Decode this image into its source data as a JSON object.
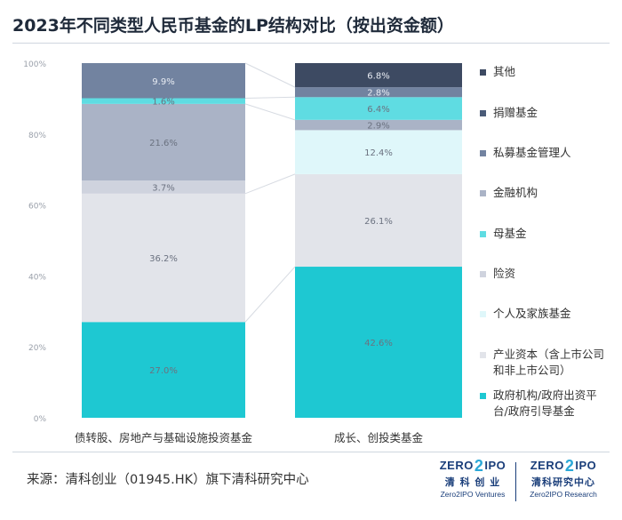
{
  "title": "2023年不同类型人民币基金的LP结构对比（按出资金额）",
  "source": "来源：清科创业（01945.HK）旗下清科研究中心",
  "logos": [
    {
      "mark_left": "ZERO",
      "mark_mid": "2",
      "mark_right": "IPO",
      "cn": "清 科 创 业",
      "en": "Zero2IPO Ventures"
    },
    {
      "mark_left": "ZERO",
      "mark_mid": "2",
      "mark_right": "IPO",
      "cn": "清科研究中心",
      "en": "Zero2IPO Research"
    }
  ],
  "chart_data": {
    "type": "bar",
    "stacked": true,
    "categories": [
      "债转股、房地产与基础设施投资基金",
      "成长、创投类基金"
    ],
    "ylim": [
      0,
      100
    ],
    "y_ticks": [
      "0%",
      "20%",
      "40%",
      "60%",
      "80%",
      "100%"
    ],
    "series": [
      {
        "name": "政府机构/政府出资平台/政府引导基金",
        "color": "#1ec8d2",
        "values": [
          27.0,
          42.6
        ],
        "labels": [
          "27.0%",
          "42.6%"
        ]
      },
      {
        "name": "产业资本（含上市公司和非上市公司）",
        "color": "#e2e4ea",
        "values": [
          36.2,
          26.1
        ],
        "labels": [
          "36.2%",
          "26.1%"
        ]
      },
      {
        "name": "个人及家族基金",
        "color": "#dff7fa",
        "values": [
          0.0,
          12.4
        ],
        "labels": [
          "",
          "12.4%"
        ]
      },
      {
        "name": "险资",
        "color": "#cfd3de",
        "values": [
          3.7,
          0.0
        ],
        "labels": [
          "3.7%",
          ""
        ]
      },
      {
        "name": "金融机构",
        "color": "#aab3c6",
        "values": [
          21.6,
          2.9
        ],
        "labels": [
          "21.6%",
          "2.9%"
        ]
      },
      {
        "name": "母基金",
        "color": "#5fdce2",
        "values": [
          1.6,
          6.4
        ],
        "labels": [
          "1.6%",
          "6.4%"
        ]
      },
      {
        "name": "私募基金管理人",
        "color": "#7283a0",
        "values": [
          9.9,
          2.8
        ],
        "labels": [
          "9.9%",
          "2.8%"
        ]
      },
      {
        "name": "捐赠基金",
        "color": "#4a5b78",
        "values": [
          0.0,
          0.0
        ],
        "labels": [
          "",
          ""
        ]
      },
      {
        "name": "其他",
        "color": "#3d4a62",
        "values": [
          0.0,
          6.8
        ],
        "labels": [
          "",
          "6.8%"
        ]
      }
    ],
    "legend_order": [
      "其他",
      "捐赠基金",
      "私募基金管理人",
      "金融机构",
      "母基金",
      "险资",
      "个人及家族基金",
      "产业资本（含上市公司和非上市公司）",
      "政府机构/政府出资平台/政府引导基金"
    ],
    "legend_position": "right"
  }
}
